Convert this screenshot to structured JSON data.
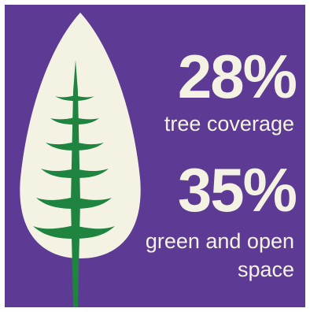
{
  "colors": {
    "background": "#5d3b94",
    "leaf": "#f4f3e3",
    "tree": "#1f8440",
    "text": "#f4f3e3"
  },
  "icons": {
    "illustration": "tree-leaf-icon"
  },
  "stats": [
    {
      "value": "28%",
      "label": "tree coverage"
    },
    {
      "value": "35%",
      "label": "green and open space"
    }
  ]
}
